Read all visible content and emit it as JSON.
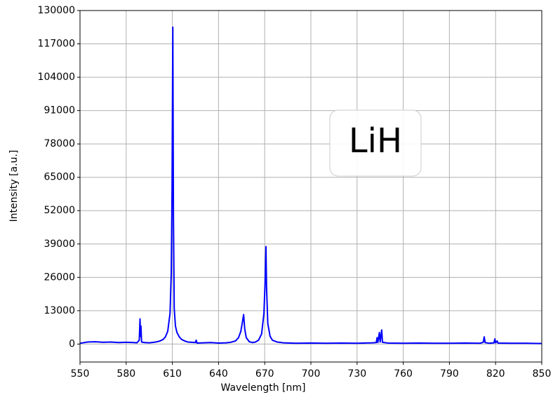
{
  "chart_data": {
    "type": "line",
    "annotation": "LiH",
    "xlabel": "Wavelength [nm]",
    "ylabel": "Intensity [a.u.]",
    "xlim": [
      550,
      850
    ],
    "xticks": [
      550,
      580,
      610,
      640,
      670,
      700,
      730,
      760,
      790,
      820,
      850
    ],
    "ylim": [
      -7000,
      130000
    ],
    "yticks": [
      0,
      13000,
      26000,
      39000,
      52000,
      65000,
      78000,
      91000,
      104000,
      117000,
      130000
    ],
    "grid": true,
    "color": "#0000ff",
    "x": [
      550,
      555,
      560,
      565,
      570,
      575,
      580,
      585,
      587,
      588.5,
      589,
      589.3,
      589.6,
      590,
      592,
      595,
      598,
      600,
      602,
      604,
      605.5,
      607,
      608.5,
      609.3,
      609.8,
      610.3,
      610.7,
      611.2,
      612,
      613,
      614.5,
      616,
      618,
      620,
      625,
      625.5,
      626,
      630,
      635,
      640,
      645,
      648,
      651,
      653,
      654.5,
      655.5,
      656.3,
      657,
      658,
      660,
      662,
      664,
      666,
      668,
      669.5,
      670.3,
      670.8,
      671.2,
      672,
      673.5,
      675,
      678,
      682,
      690,
      700,
      710,
      720,
      730,
      740,
      742.5,
      743,
      743.5,
      744.5,
      745,
      746,
      746.5,
      750,
      760,
      770,
      780,
      790,
      800,
      810,
      812,
      812.6,
      813.2,
      816,
      819,
      819.5,
      820,
      821,
      821.5,
      830,
      840,
      850
    ],
    "values": [
      300,
      800,
      900,
      700,
      800,
      600,
      700,
      600,
      500,
      1500,
      9800,
      3000,
      7000,
      800,
      600,
      500,
      700,
      900,
      1200,
      1800,
      2800,
      5000,
      12000,
      28000,
      60000,
      123500,
      50000,
      14000,
      7000,
      4500,
      2800,
      1800,
      1200,
      800,
      600,
      1500,
      400,
      500,
      600,
      400,
      500,
      700,
      1200,
      2500,
      5000,
      8500,
      11500,
      6000,
      2500,
      900,
      600,
      800,
      1500,
      4000,
      12000,
      25000,
      38000,
      22000,
      8000,
      3000,
      1500,
      800,
      500,
      300,
      400,
      300,
      400,
      300,
      500,
      600,
      2500,
      600,
      4500,
      800,
      5500,
      700,
      400,
      300,
      400,
      300,
      300,
      400,
      300,
      700,
      2800,
      600,
      300,
      500,
      2000,
      500,
      1200,
      400,
      300,
      300,
      200
    ]
  }
}
